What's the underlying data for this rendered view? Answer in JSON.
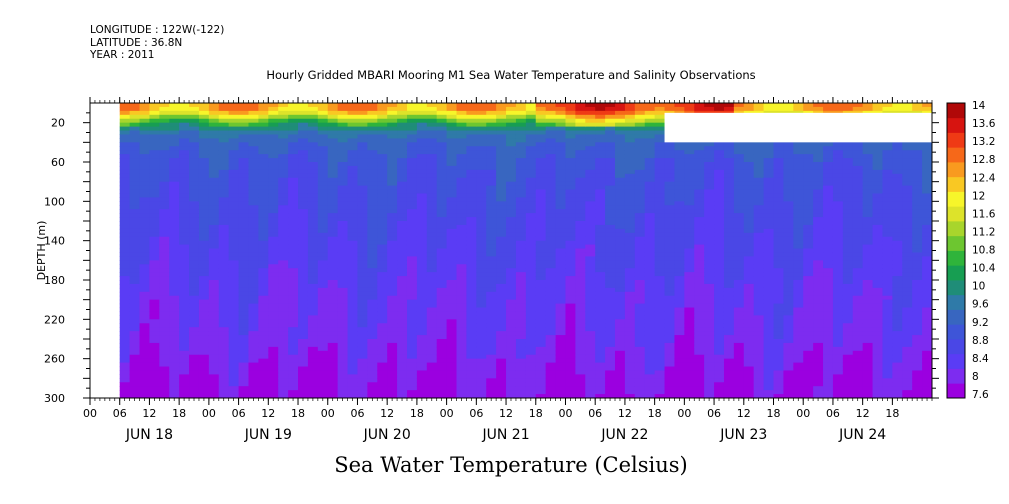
{
  "header": {
    "longitude": "LONGITUDE : 122W(-122)",
    "latitude": "LATITUDE : 36.8N",
    "year": "YEAR : 2011"
  },
  "chart_data": {
    "type": "heatmap",
    "title": "Hourly Gridded MBARI Mooring M1 Sea Water Temperature and Salinity Observations",
    "variable_label": "Sea Water Temperature (Celsius)",
    "ylabel": "DEPTH (m)",
    "ylim": [
      300,
      0
    ],
    "y_inverted": true,
    "y_ticks": [
      20,
      60,
      100,
      140,
      180,
      220,
      260,
      300
    ],
    "x_hour_ticks": [
      "00",
      "06",
      "12",
      "18",
      "00",
      "06",
      "12",
      "18",
      "00",
      "06",
      "12",
      "18",
      "00",
      "06",
      "12",
      "18",
      "00",
      "06",
      "12",
      "18",
      "00",
      "06",
      "12",
      "18",
      "00",
      "06",
      "12",
      "18"
    ],
    "x_day_labels": [
      "JUN 18",
      "JUN 19",
      "JUN 20",
      "JUN 21",
      "JUN 22",
      "JUN 23",
      "JUN 24"
    ],
    "x_range_hours": [
      0,
      170
    ],
    "data_start_hour": 6,
    "gap": {
      "start_hour": 116,
      "end_hour": 170,
      "depth_top": 10,
      "depth_bottom": 40
    },
    "colorbar": {
      "labels": [
        "14",
        "13.6",
        "13.2",
        "12.8",
        "12.4",
        "12",
        "11.6",
        "11.2",
        "10.8",
        "10.4",
        "10",
        "9.6",
        "9.2",
        "8.8",
        "8.4",
        "8",
        "7.6"
      ],
      "min": 7.6,
      "max": 14,
      "colors": [
        "#9b00e0",
        "#7d2cf0",
        "#5a3cf5",
        "#4a47e6",
        "#3e55d8",
        "#3866c0",
        "#2f7aa8",
        "#1f8d78",
        "#179e52",
        "#2fb43b",
        "#6dc630",
        "#a8d52c",
        "#dde32a",
        "#f7f52a",
        "#f9c823",
        "#f99a1f",
        "#f66819",
        "#ef3a15",
        "#d71410",
        "#b00808"
      ]
    },
    "profile_depths": [
      5,
      10,
      15,
      20,
      25,
      30,
      40,
      50,
      60,
      80,
      100,
      120,
      140,
      160,
      180,
      200,
      230,
      260,
      280,
      300
    ],
    "profile_temps": [
      12.5,
      12.0,
      11.3,
      10.6,
      10.0,
      9.6,
      9.3,
      9.15,
      9.0,
      8.9,
      8.8,
      8.7,
      8.6,
      8.5,
      8.4,
      8.3,
      8.2,
      8.05,
      7.9,
      7.8
    ]
  }
}
